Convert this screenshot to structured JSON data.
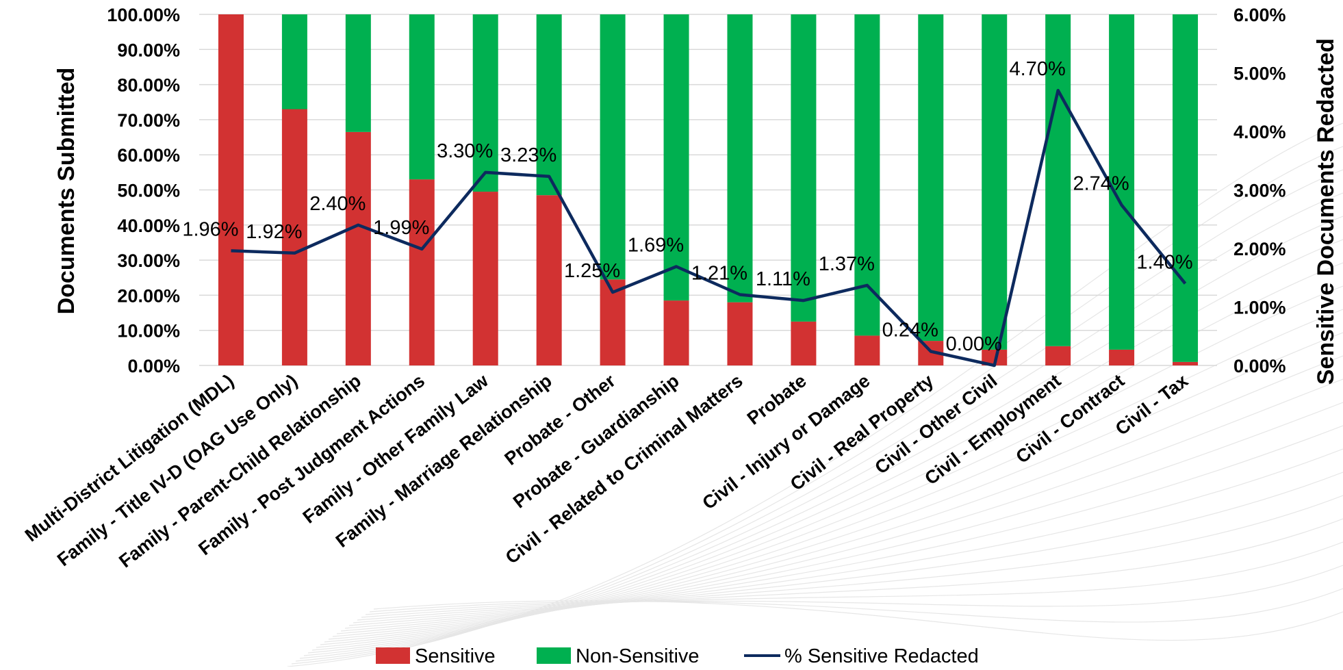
{
  "chart_data": {
    "type": "bar",
    "stacked": true,
    "categories": [
      "Multi-District Litigation (MDL)",
      "Family - Title IV-D (OAG Use Only)",
      "Family - Parent-Child Relationship",
      "Family - Post Judgment Actions",
      "Family - Other Family Law",
      "Family - Marriage Relationship",
      "Probate - Other",
      "Probate - Guardianship",
      "Civil - Related to Criminal Matters",
      "Probate",
      "Civil - Injury or Damage",
      "Civil - Real Property",
      "Civil - Other Civil",
      "Civil - Employment",
      "Civil - Contract",
      "Civil - Tax"
    ],
    "series": [
      {
        "name": "Sensitive",
        "axis": "left",
        "color": "#d23232",
        "values": [
          100.0,
          73.0,
          66.5,
          53.0,
          49.5,
          48.5,
          24.5,
          18.5,
          18.0,
          12.5,
          8.5,
          7.0,
          4.5,
          5.5,
          4.5,
          1.0
        ]
      },
      {
        "name": "Non-Sensitive",
        "axis": "left",
        "color": "#00b050",
        "values": [
          0.0,
          27.0,
          33.5,
          47.0,
          50.5,
          51.5,
          75.5,
          81.5,
          82.0,
          87.5,
          91.5,
          93.0,
          95.5,
          94.5,
          95.5,
          99.0
        ]
      },
      {
        "name": "% Sensitive Redacted",
        "type": "line",
        "axis": "right",
        "color": "#0d2a5e",
        "values": [
          1.96,
          1.92,
          2.4,
          1.99,
          3.3,
          3.23,
          1.25,
          1.69,
          1.21,
          1.11,
          1.37,
          0.24,
          0.0,
          4.7,
          2.74,
          1.4
        ],
        "labels": [
          "1.96%",
          "1.92%",
          "2.40%",
          "1.99%",
          "3.30%",
          "3.23%",
          "1.25%",
          "1.69%",
          "1.21%",
          "1.11%",
          "1.37%",
          "0.24%",
          "0.00%",
          "4.70%",
          "2.74%",
          "1.40%"
        ]
      }
    ],
    "ylabel": "Documents Submitted",
    "y2label": "Sensitive Documents Redacted",
    "ylim": [
      0,
      100
    ],
    "y2lim": [
      0,
      6
    ],
    "yticks": [
      "0.00%",
      "10.00%",
      "20.00%",
      "30.00%",
      "40.00%",
      "50.00%",
      "60.00%",
      "70.00%",
      "80.00%",
      "90.00%",
      "100.00%"
    ],
    "y2ticks": [
      "0.00%",
      "1.00%",
      "2.00%",
      "3.00%",
      "4.00%",
      "5.00%",
      "6.00%"
    ],
    "grid": true,
    "legend": {
      "position": "bottom",
      "items": [
        "Sensitive",
        "Non-Sensitive",
        "% Sensitive Redacted"
      ]
    }
  }
}
